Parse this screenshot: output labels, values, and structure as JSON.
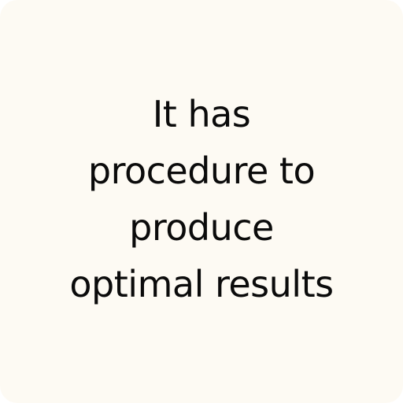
{
  "card": {
    "background": "#fdfaf3",
    "text_color": "#0b0b0b",
    "lines": [
      "It has",
      "procedure to",
      "produce",
      "optimal results"
    ]
  }
}
